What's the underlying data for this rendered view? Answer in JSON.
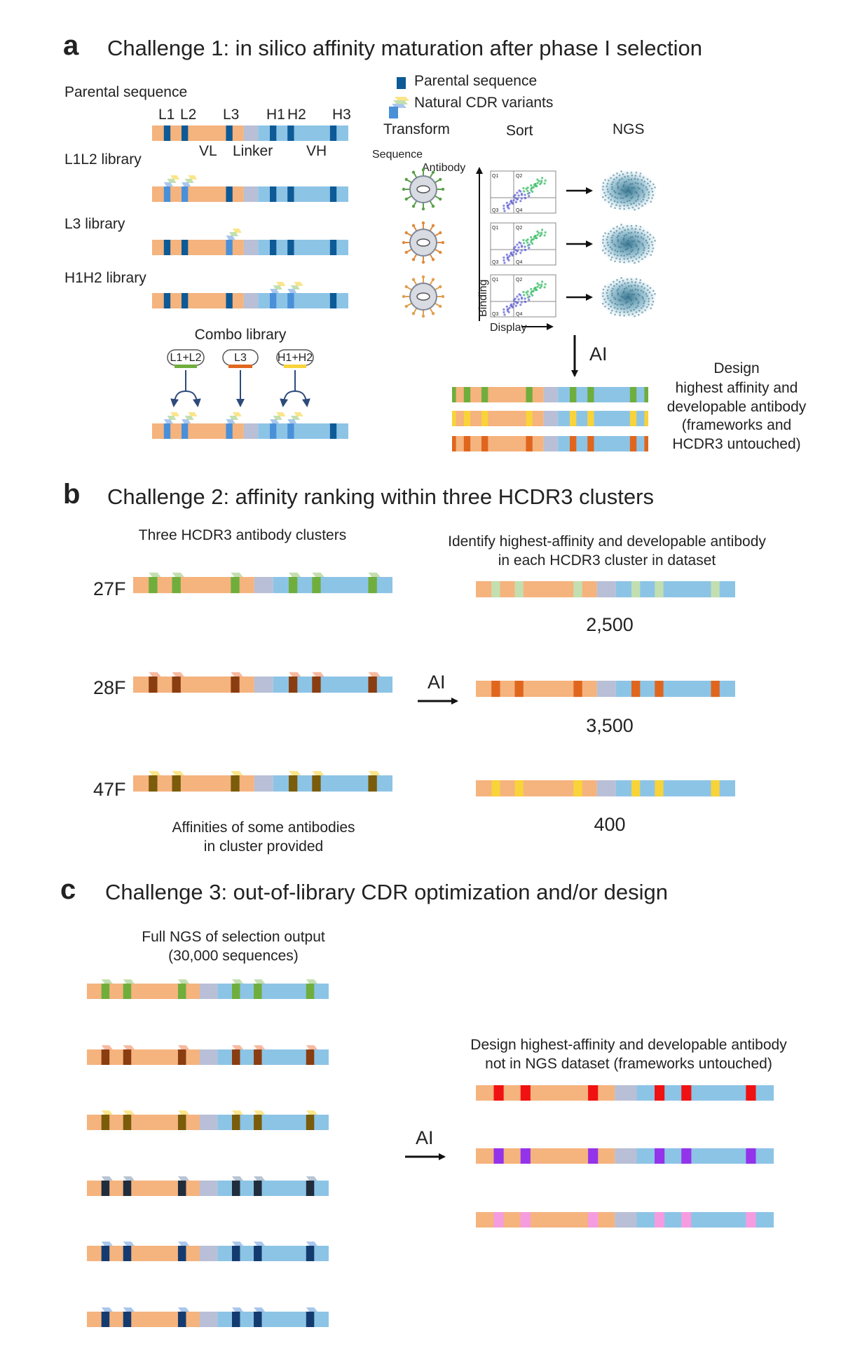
{
  "colors": {
    "vl": "#f5b37e",
    "linker": "#b8bfd6",
    "vh": "#8cc4e6",
    "parental": "#0d5a96",
    "green": "#6fae3c",
    "green_light": "#c3dfb0",
    "orange": "#e0661e",
    "orange_dark": "#8a3d10",
    "orange_light": "#f7b9a0",
    "yellow": "#f8d33a",
    "olive": "#7a5c0a",
    "yellow_light": "#fbe58a",
    "red": "#f01212",
    "purple": "#9333ea",
    "pink": "#f59ce0",
    "navy": "#1f2d3d",
    "navy_light": "#b7c4d3",
    "blue_dark": "#143b70",
    "blue_light": "#a9c7ec"
  },
  "panel_a": {
    "letter": "a",
    "title": "Challenge 1: in silico affinity maturation after phase I selection",
    "parental_sequence_label": "Parental sequence",
    "cdr_labels": [
      "L1",
      "L2",
      "L3",
      "H1",
      "H2",
      "H3"
    ],
    "region_labels": {
      "vl": "VL",
      "linker": "Linker",
      "vh": "VH"
    },
    "libraries": [
      "L1L2 library",
      "L3 library",
      "H1H2 library"
    ],
    "combo_library": "Combo library",
    "combo_tags": [
      "L1+L2",
      "L3",
      "H1+H2"
    ],
    "legend": [
      "Parental sequence",
      "Natural CDR variants"
    ],
    "steps": [
      "Transform",
      "Sort",
      "NGS"
    ],
    "sequence_label": "Sequence",
    "antibody_label": "Antibody",
    "axis_y": "Binding",
    "axis_x": "Display",
    "quadrants": [
      "Q1",
      "Q2",
      "Q3",
      "Q4"
    ],
    "ai_label": "AI",
    "design_text": [
      "Design",
      "highest affinity and",
      "developable antibody",
      "(frameworks and",
      "HCDR3 untouched)"
    ]
  },
  "panel_b": {
    "letter": "b",
    "title": "Challenge 2: affinity ranking within three HCDR3 clusters",
    "clusters_label": "Three HCDR3 antibody clusters",
    "identify_text": [
      "Identify highest-affinity and developable antibody",
      "in each HCDR3 cluster in dataset"
    ],
    "clusters": [
      {
        "name": "27F",
        "count": "2,500"
      },
      {
        "name": "28F",
        "count": "3,500"
      },
      {
        "name": "47F",
        "count": "400"
      }
    ],
    "ai_label": "AI",
    "affinities_text": [
      "Affinities of some antibodies",
      "in cluster provided"
    ]
  },
  "panel_c": {
    "letter": "c",
    "title": "Challenge 3: out-of-library CDR optimization and/or design",
    "ngs_text": [
      "Full NGS of selection output",
      "(30,000 sequences)"
    ],
    "design_text": [
      "Design highest-affinity and developable antibody",
      "not in NGS dataset (frameworks untouched)"
    ],
    "ai_label": "AI"
  }
}
